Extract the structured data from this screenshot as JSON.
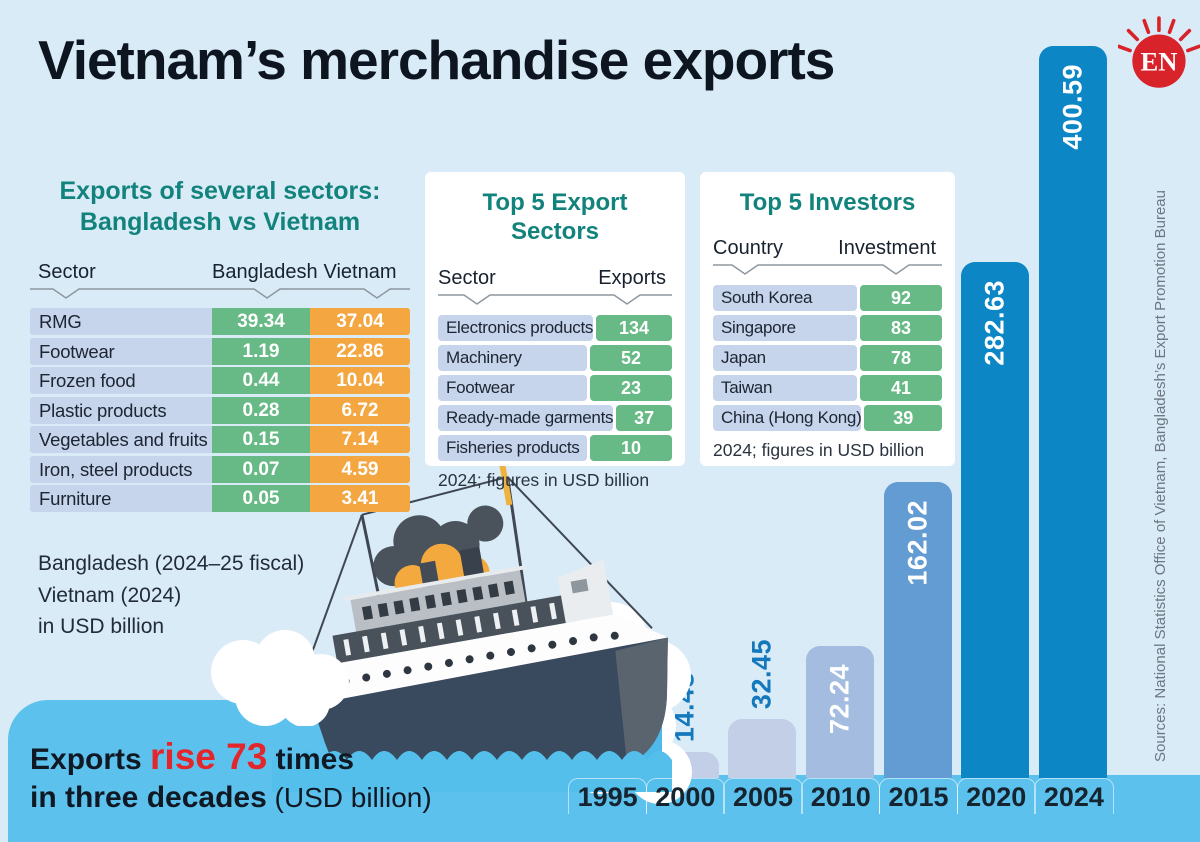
{
  "header": {
    "title": "Vietnam’s merchandise exports",
    "logo_text": "EN"
  },
  "comparison": {
    "heading_line1": "Exports of several sectors:",
    "heading_line2": "Bangladesh vs Vietnam",
    "columns": [
      "Sector",
      "Bangladesh",
      "Vietnam"
    ],
    "rows": [
      {
        "sector": "RMG",
        "bangladesh": "39.34",
        "vietnam": "37.04"
      },
      {
        "sector": "Footwear",
        "bangladesh": "1.19",
        "vietnam": "22.86"
      },
      {
        "sector": "Frozen food",
        "bangladesh": "0.44",
        "vietnam": "10.04"
      },
      {
        "sector": "Plastic products",
        "bangladesh": "0.28",
        "vietnam": "6.72"
      },
      {
        "sector": "Vegetables and fruits",
        "bangladesh": "0.15",
        "vietnam": "7.14"
      },
      {
        "sector": "Iron, steel products",
        "bangladesh": "0.07",
        "vietnam": "4.59"
      },
      {
        "sector": "Furniture",
        "bangladesh": "0.05",
        "vietnam": "3.41"
      }
    ],
    "footnote_lines": [
      "Bangladesh (2024–25 fiscal)",
      "Vietnam (2024)",
      "in USD billion"
    ]
  },
  "top_export_sectors": {
    "title": "Top 5 Export Sectors",
    "columns": [
      "Sector",
      "Exports"
    ],
    "rows": [
      {
        "label": "Electronics products",
        "value": "134"
      },
      {
        "label": "Machinery",
        "value": "52"
      },
      {
        "label": "Footwear",
        "value": "23"
      },
      {
        "label": "Ready-made garments",
        "value": "37"
      },
      {
        "label": "Fisheries products",
        "value": "10"
      }
    ],
    "note": "2024; figures in USD billion"
  },
  "top_investors": {
    "title": "Top 5 Investors",
    "columns": [
      "Country",
      "Investment"
    ],
    "rows": [
      {
        "label": "South Korea",
        "value": "92"
      },
      {
        "label": "Singapore",
        "value": "83"
      },
      {
        "label": "Japan",
        "value": "78"
      },
      {
        "label": "Taiwan",
        "value": "41"
      },
      {
        "label": "China (Hong Kong)",
        "value": "39"
      }
    ],
    "note": "2024; figures in USD billion"
  },
  "chart_data": {
    "type": "bar",
    "title": "Exports rise 73 times in three decades",
    "unit": "USD billion",
    "categories": [
      "1995",
      "2000",
      "2005",
      "2010",
      "2015",
      "2020",
      "2024"
    ],
    "values": [
      null,
      14.48,
      32.45,
      72.24,
      162.02,
      282.63,
      400.59
    ],
    "value_labels": [
      "",
      "14.48",
      "32.45",
      "72.24",
      "162.02",
      "282.63",
      "400.59"
    ],
    "ylim": [
      0,
      400.59
    ],
    "grid": false,
    "legend": null,
    "label_styles": [
      "none",
      "above",
      "above",
      "inside",
      "inside",
      "inside",
      "inside"
    ],
    "bar_colors": [
      "#c9dcef",
      "#c3cfe7",
      "#c3cfe7",
      "#a3bcdf",
      "#639bd3",
      "#0c86c5",
      "#0c86c5"
    ]
  },
  "caption": {
    "part1": "Exports ",
    "highlight": "rise 73",
    "part2": " times",
    "line2_bold": "in three decades",
    "line2_rest": " (USD billion)"
  },
  "source_note": "Sources: National Statistics Office of Vietnam, Bangladesh’s Export Promotion Bureau",
  "colors": {
    "background": "#d9ebf7",
    "water": "#5cc1ec",
    "teal_heading": "#12837c",
    "green_cell": "#67b985",
    "orange_cell": "#f4a640",
    "sector_cell": "#c6d4ec",
    "bar_dark_blue": "#0c86c5",
    "bar_label_blue": "#1478bd",
    "accent_red": "#e2262c"
  }
}
